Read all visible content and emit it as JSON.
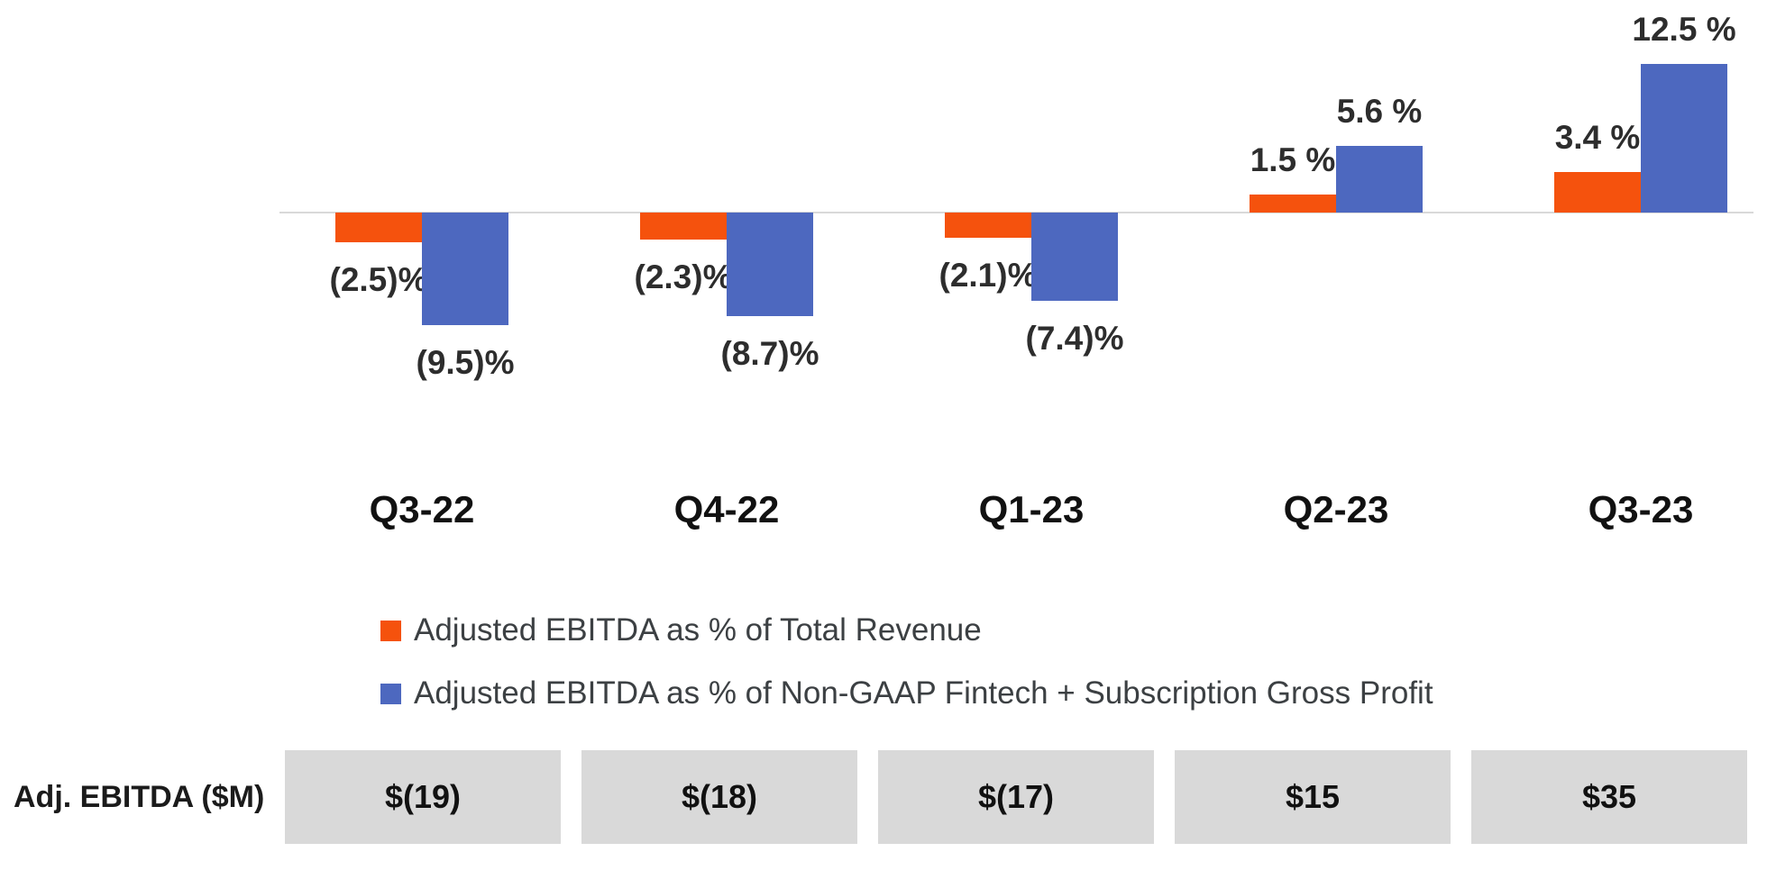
{
  "chart_data": {
    "type": "bar",
    "categories": [
      "Q3-22",
      "Q4-22",
      "Q1-23",
      "Q2-23",
      "Q3-23"
    ],
    "series": [
      {
        "name": "Adjusted EBITDA as % of Total Revenue",
        "slug": "total-revenue",
        "color": "#F5520D",
        "values": [
          -2.5,
          -2.3,
          -2.1,
          1.5,
          3.4
        ],
        "labels": [
          "(2.5)%",
          "(2.3)%",
          "(2.1)%",
          "1.5 %",
          "3.4 %"
        ]
      },
      {
        "name": "Adjusted EBITDA as % of Non-GAAP Fintech + Subscription Gross Profit",
        "slug": "gross-profit",
        "color": "#4D68BF",
        "values": [
          -9.5,
          -8.7,
          -7.4,
          5.6,
          12.5
        ],
        "labels": [
          "(9.5)%",
          "(8.7)%",
          "(7.4)%",
          "5.6 %",
          "12.5 %"
        ]
      }
    ],
    "unit": "%",
    "ylim": [
      -10.5,
      13.5
    ],
    "grid": false,
    "axis_line_color": "#D9D9D9",
    "legend_position": "below-chart",
    "title": "",
    "xlabel": "",
    "ylabel": ""
  },
  "table": {
    "row_label": "Adj. EBITDA ($M)",
    "values": [
      "$(19)",
      "$(18)",
      "$(17)",
      "$15",
      "$35"
    ],
    "cell_bg": "#D9D9D9"
  },
  "colors": {
    "orange_series": "#F5520D",
    "blue_series": "#4D68BF",
    "axis_line": "#D9D9D9",
    "table_cell_bg": "#D9D9D9",
    "label_text": "#2d2d2d",
    "legend_text": "#3c4043"
  }
}
